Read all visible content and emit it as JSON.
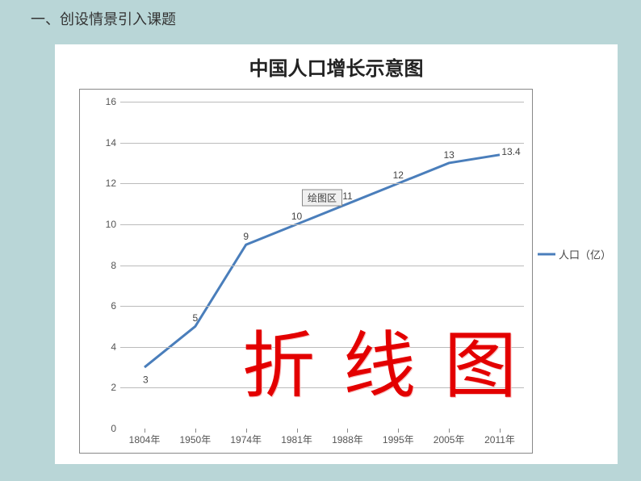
{
  "section_heading": "一、创设情景引入课题",
  "chart": {
    "type": "line",
    "title": "中国人口增长示意图",
    "title_fontsize": 24,
    "background_color": "#ffffff",
    "grid_color": "#bbbbbb",
    "axis_color": "#888888",
    "line_color": "#4a7ebb",
    "line_width": 3,
    "label_fontsize": 12,
    "ylim": [
      0,
      16
    ],
    "ytick_step": 2,
    "categories": [
      "1804年",
      "1950年",
      "1974年",
      "1981年",
      "1988年",
      "1995年",
      "2005年",
      "2011年"
    ],
    "values": [
      3,
      5,
      9,
      10,
      11,
      12,
      13,
      13.4
    ],
    "data_labels": [
      "3",
      "5",
      "9",
      "10",
      "11",
      "12",
      "13",
      "13.4"
    ],
    "plot_box_label": "绘图区",
    "legend_text": "人口（亿）"
  },
  "overlay_text": "折线图",
  "page_background": "#b9d6d7"
}
